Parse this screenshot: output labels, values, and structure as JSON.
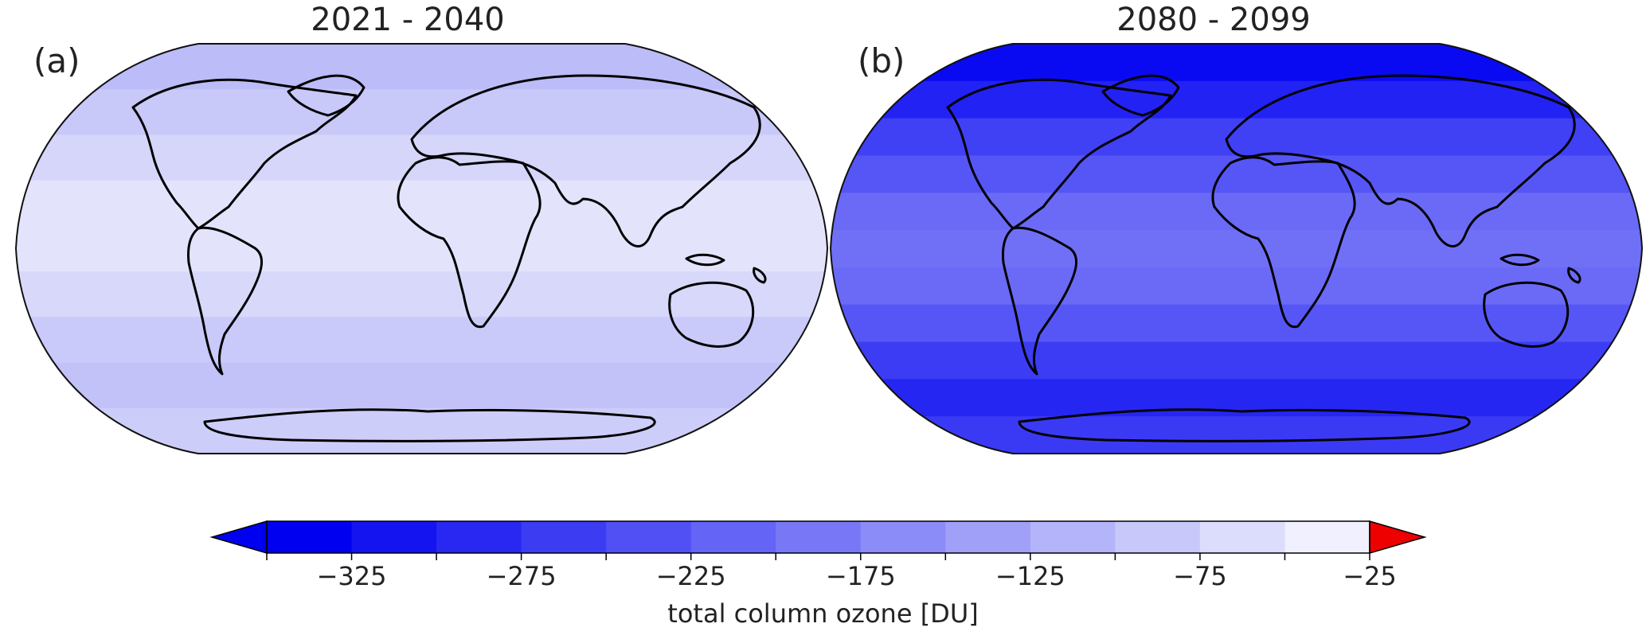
{
  "panels": [
    {
      "letter": "(a)",
      "title": "2021 - 2040",
      "band_colors": [
        "#bcbcf8",
        "#c8c8f9",
        "#d6d6fb",
        "#e3e3fc",
        "#e3e3fc",
        "#d8d8fb",
        "#c9c9fa",
        "#c2c2f9",
        "#cdcdfa"
      ]
    },
    {
      "letter": "(b)",
      "title": "2080 - 2099",
      "band_colors": [
        "#0a0af2",
        "#2222f4",
        "#4040f5",
        "#5656f6",
        "#6a6af7",
        "#7070f7",
        "#6a6af7",
        "#5656f6",
        "#3c3cf5",
        "#2626f3",
        "#3a3af5"
      ]
    }
  ],
  "colorbar": {
    "label": "total column ozone [DU]",
    "ticks": [
      "−325",
      "−275",
      "−225",
      "−175",
      "−125",
      "−75",
      "−25"
    ],
    "colors": [
      "#0000f0",
      "#1414f1",
      "#2828f2",
      "#3c3cf3",
      "#5050f5",
      "#6464f6",
      "#7878f7",
      "#8c8cf8",
      "#a0a0f9",
      "#b4b4fa",
      "#c8c8fb",
      "#dcdcfc",
      "#f0f0fe"
    ],
    "under_color": "#0000f0",
    "over_color": "#ee0000"
  }
}
